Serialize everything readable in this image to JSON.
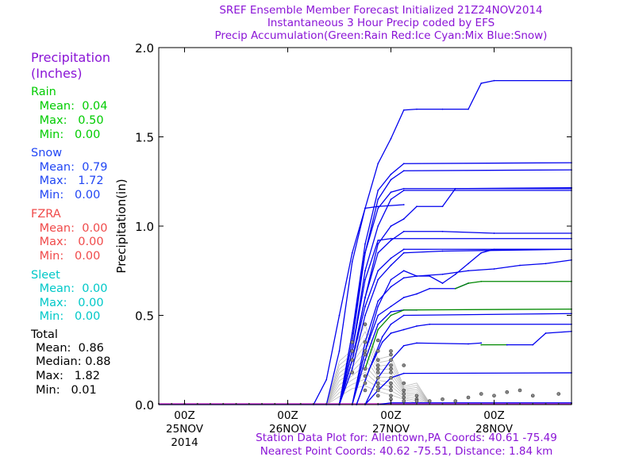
{
  "header": {
    "line1": "SREF Ensemble Member Forecast Initialized 21Z24NOV2014",
    "line2": "Instantaneous 3 Hour Precip coded by EFS",
    "line3": "Precip Accumulation(Green:Rain Red:Ice Cyan:Mix Blue:Snow)"
  },
  "legend_panel": {
    "title1": "Precipitation",
    "title2": "(Inches)",
    "rain": {
      "label": "Rain",
      "mean": " Mean:  0.04",
      "max": " Max:   0.50",
      "min": " Min:   0.00"
    },
    "snow": {
      "label": "Snow",
      "mean": " Mean:  0.79",
      "max": " Max:   1.72",
      "min": " Min:   0.00"
    },
    "fzra": {
      "label": "FZRA",
      "mean": " Mean:  0.00",
      "max": " Max:   0.00",
      "min": " Min:   0.00"
    },
    "sleet": {
      "label": "Sleet",
      "mean": " Mean:  0.00",
      "max": " Max:   0.00",
      "min": " Min:   0.00"
    },
    "total": {
      "label": "Total",
      "mean": "Mean:  0.86",
      "median": "Median: 0.88",
      "max": "Max:   1.82",
      "min": "Min:   0.01"
    }
  },
  "footer": {
    "line1": "Station Data Plot for: Allentown,PA Coords: 40.61 -75.49",
    "line2": "Nearest Point Coords: 40.62 -75.51, Distance: 1.84 km"
  },
  "colors": {
    "snow": "#0000ee",
    "rain": "#008800",
    "ice": "#ff0000",
    "mix": "#00cccc",
    "instant": "#888888",
    "base": "#cc33cc",
    "text_purple": "#8a14d6"
  },
  "chart_data": {
    "type": "line",
    "ylabel": "Precipitation(in)",
    "ylim": [
      0,
      2.0
    ],
    "yticks": [
      "0.0",
      "0.5",
      "1.0",
      "1.5",
      "2.0"
    ],
    "xlim_hours": [
      -6,
      90
    ],
    "xticks": [
      {
        "hour": 0,
        "label1": "00Z",
        "label2": "25NOV",
        "label3": "2014"
      },
      {
        "hour": 24,
        "label1": "00Z",
        "label2": "26NOV",
        "label3": ""
      },
      {
        "hour": 48,
        "label1": "00Z",
        "label2": "27NOV",
        "label3": ""
      },
      {
        "hour": 72,
        "label1": "00Z",
        "label2": "28NOV",
        "label3": ""
      }
    ],
    "x_hours_note": "x values are forecast hours after 00Z 25NOV2014",
    "series": [
      {
        "type": "snow",
        "pts": [
          [
            30,
            0
          ],
          [
            33,
            0.14
          ],
          [
            36,
            0.5
          ],
          [
            39,
            0.85
          ],
          [
            42,
            1.1
          ],
          [
            45,
            1.11
          ],
          [
            51,
            1.12
          ]
        ]
      },
      {
        "type": "snow",
        "pts": [
          [
            33,
            0
          ],
          [
            36,
            0.3
          ],
          [
            39,
            0.8
          ],
          [
            42,
            1.1
          ],
          [
            45,
            1.35
          ],
          [
            48,
            1.49
          ],
          [
            51,
            1.65
          ],
          [
            54,
            1.655
          ],
          [
            60,
            1.655
          ],
          [
            66,
            1.655
          ],
          [
            69,
            1.8
          ],
          [
            72,
            1.815
          ],
          [
            90,
            1.815
          ]
        ]
      },
      {
        "type": "snow",
        "pts": [
          [
            36,
            0
          ],
          [
            39,
            0.4
          ],
          [
            42,
            0.9
          ],
          [
            45,
            1.2
          ],
          [
            48,
            1.29
          ],
          [
            51,
            1.35
          ],
          [
            90,
            1.355
          ]
        ]
      },
      {
        "type": "snow",
        "pts": [
          [
            36,
            0
          ],
          [
            39,
            0.35
          ],
          [
            42,
            0.85
          ],
          [
            45,
            1.15
          ],
          [
            48,
            1.26
          ],
          [
            51,
            1.31
          ],
          [
            90,
            1.315
          ]
        ]
      },
      {
        "type": "snow",
        "pts": [
          [
            36,
            0
          ],
          [
            39,
            0.4
          ],
          [
            42,
            0.85
          ],
          [
            45,
            1.1
          ],
          [
            48,
            1.19
          ],
          [
            51,
            1.21
          ],
          [
            90,
            1.21
          ]
        ]
      },
      {
        "type": "snow",
        "pts": [
          [
            36,
            0
          ],
          [
            39,
            0.3
          ],
          [
            42,
            0.75
          ],
          [
            45,
            1.0
          ],
          [
            48,
            1.15
          ],
          [
            51,
            1.2
          ],
          [
            90,
            1.2
          ]
        ]
      },
      {
        "type": "snow",
        "pts": [
          [
            36,
            0
          ],
          [
            39,
            0.25
          ],
          [
            42,
            0.6
          ],
          [
            45,
            0.9
          ],
          [
            48,
            1.0
          ],
          [
            51,
            1.04
          ],
          [
            54,
            1.11
          ],
          [
            60,
            1.11
          ],
          [
            63,
            1.21
          ],
          [
            90,
            1.215
          ]
        ]
      },
      {
        "type": "snow",
        "pts": [
          [
            36,
            0
          ],
          [
            39,
            0.3
          ],
          [
            42,
            0.7
          ],
          [
            45,
            0.92
          ],
          [
            48,
            0.93
          ],
          [
            90,
            0.93
          ]
        ]
      },
      {
        "type": "snow",
        "pts": [
          [
            36,
            0
          ],
          [
            39,
            0.25
          ],
          [
            42,
            0.6
          ],
          [
            45,
            0.85
          ],
          [
            48,
            0.92
          ],
          [
            51,
            0.97
          ],
          [
            60,
            0.97
          ],
          [
            72,
            0.96
          ],
          [
            90,
            0.96
          ]
        ]
      },
      {
        "type": "snow",
        "pts": [
          [
            36,
            0
          ],
          [
            39,
            0.25
          ],
          [
            42,
            0.55
          ],
          [
            45,
            0.75
          ],
          [
            48,
            0.82
          ],
          [
            51,
            0.87
          ],
          [
            90,
            0.87
          ]
        ]
      },
      {
        "type": "snow",
        "pts": [
          [
            36,
            0
          ],
          [
            39,
            0.2
          ],
          [
            42,
            0.5
          ],
          [
            45,
            0.7
          ],
          [
            48,
            0.78
          ],
          [
            51,
            0.85
          ],
          [
            60,
            0.86
          ],
          [
            90,
            0.87
          ]
        ]
      },
      {
        "type": "snow",
        "pts": [
          [
            39,
            0
          ],
          [
            42,
            0.3
          ],
          [
            45,
            0.55
          ],
          [
            48,
            0.7
          ],
          [
            51,
            0.75
          ],
          [
            54,
            0.72
          ],
          [
            57,
            0.72
          ],
          [
            60,
            0.68
          ],
          [
            63,
            0.73
          ],
          [
            66,
            0.79
          ],
          [
            69,
            0.85
          ],
          [
            72,
            0.87
          ],
          [
            90,
            0.87
          ]
        ]
      },
      {
        "type": "snow",
        "pts": [
          [
            39,
            0
          ],
          [
            42,
            0.35
          ],
          [
            45,
            0.58
          ],
          [
            48,
            0.66
          ],
          [
            51,
            0.71
          ],
          [
            54,
            0.72
          ],
          [
            60,
            0.73
          ],
          [
            66,
            0.75
          ],
          [
            72,
            0.76
          ],
          [
            78,
            0.78
          ],
          [
            84,
            0.79
          ],
          [
            90,
            0.81
          ]
        ]
      },
      {
        "type": "snow",
        "pts": [
          [
            39,
            0
          ],
          [
            42,
            0.3
          ],
          [
            45,
            0.5
          ],
          [
            48,
            0.55
          ],
          [
            51,
            0.6
          ],
          [
            54,
            0.62
          ],
          [
            57,
            0.65
          ],
          [
            63,
            0.65
          ],
          [
            66,
            0.68
          ]
        ]
      },
      {
        "type": "rain",
        "pts": [
          [
            63,
            0.65
          ],
          [
            66,
            0.68
          ],
          [
            69,
            0.69
          ],
          [
            90,
            0.69
          ]
        ]
      },
      {
        "type": "snow",
        "pts": [
          [
            39,
            0
          ],
          [
            42,
            0.25
          ],
          [
            45,
            0.45
          ],
          [
            48,
            0.52
          ],
          [
            51,
            0.53
          ],
          [
            54,
            0.53
          ]
        ]
      },
      {
        "type": "rain",
        "pts": [
          [
            42,
            0.2
          ],
          [
            45,
            0.42
          ],
          [
            48,
            0.5
          ],
          [
            51,
            0.53
          ],
          [
            90,
            0.535
          ]
        ]
      },
      {
        "type": "snow",
        "pts": [
          [
            40,
            0
          ],
          [
            43,
            0.2
          ],
          [
            46,
            0.38
          ],
          [
            48,
            0.45
          ],
          [
            51,
            0.5
          ],
          [
            90,
            0.51
          ]
        ]
      },
      {
        "type": "snow",
        "pts": [
          [
            40,
            0
          ],
          [
            43,
            0.2
          ],
          [
            46,
            0.35
          ],
          [
            48,
            0.4
          ],
          [
            51,
            0.42
          ],
          [
            54,
            0.44
          ],
          [
            57,
            0.45
          ],
          [
            90,
            0.45
          ]
        ]
      },
      {
        "type": "snow",
        "pts": [
          [
            42,
            0
          ],
          [
            45,
            0.15
          ],
          [
            48,
            0.25
          ],
          [
            51,
            0.33
          ],
          [
            54,
            0.345
          ],
          [
            66,
            0.34
          ],
          [
            69,
            0.345
          ]
        ]
      },
      {
        "type": "rain",
        "pts": [
          [
            69,
            0.335
          ],
          [
            75,
            0.335
          ]
        ]
      },
      {
        "type": "snow",
        "pts": [
          [
            75,
            0.335
          ],
          [
            81,
            0.335
          ],
          [
            84,
            0.4
          ],
          [
            90,
            0.41
          ]
        ]
      },
      {
        "type": "snow",
        "pts": [
          [
            42,
            0
          ],
          [
            45,
            0.08
          ],
          [
            48,
            0.15
          ],
          [
            51,
            0.175
          ],
          [
            90,
            0.178
          ]
        ]
      },
      {
        "type": "snow",
        "pts": [
          [
            45,
            0
          ],
          [
            48,
            0.01
          ],
          [
            90,
            0.01
          ]
        ]
      }
    ]
  }
}
